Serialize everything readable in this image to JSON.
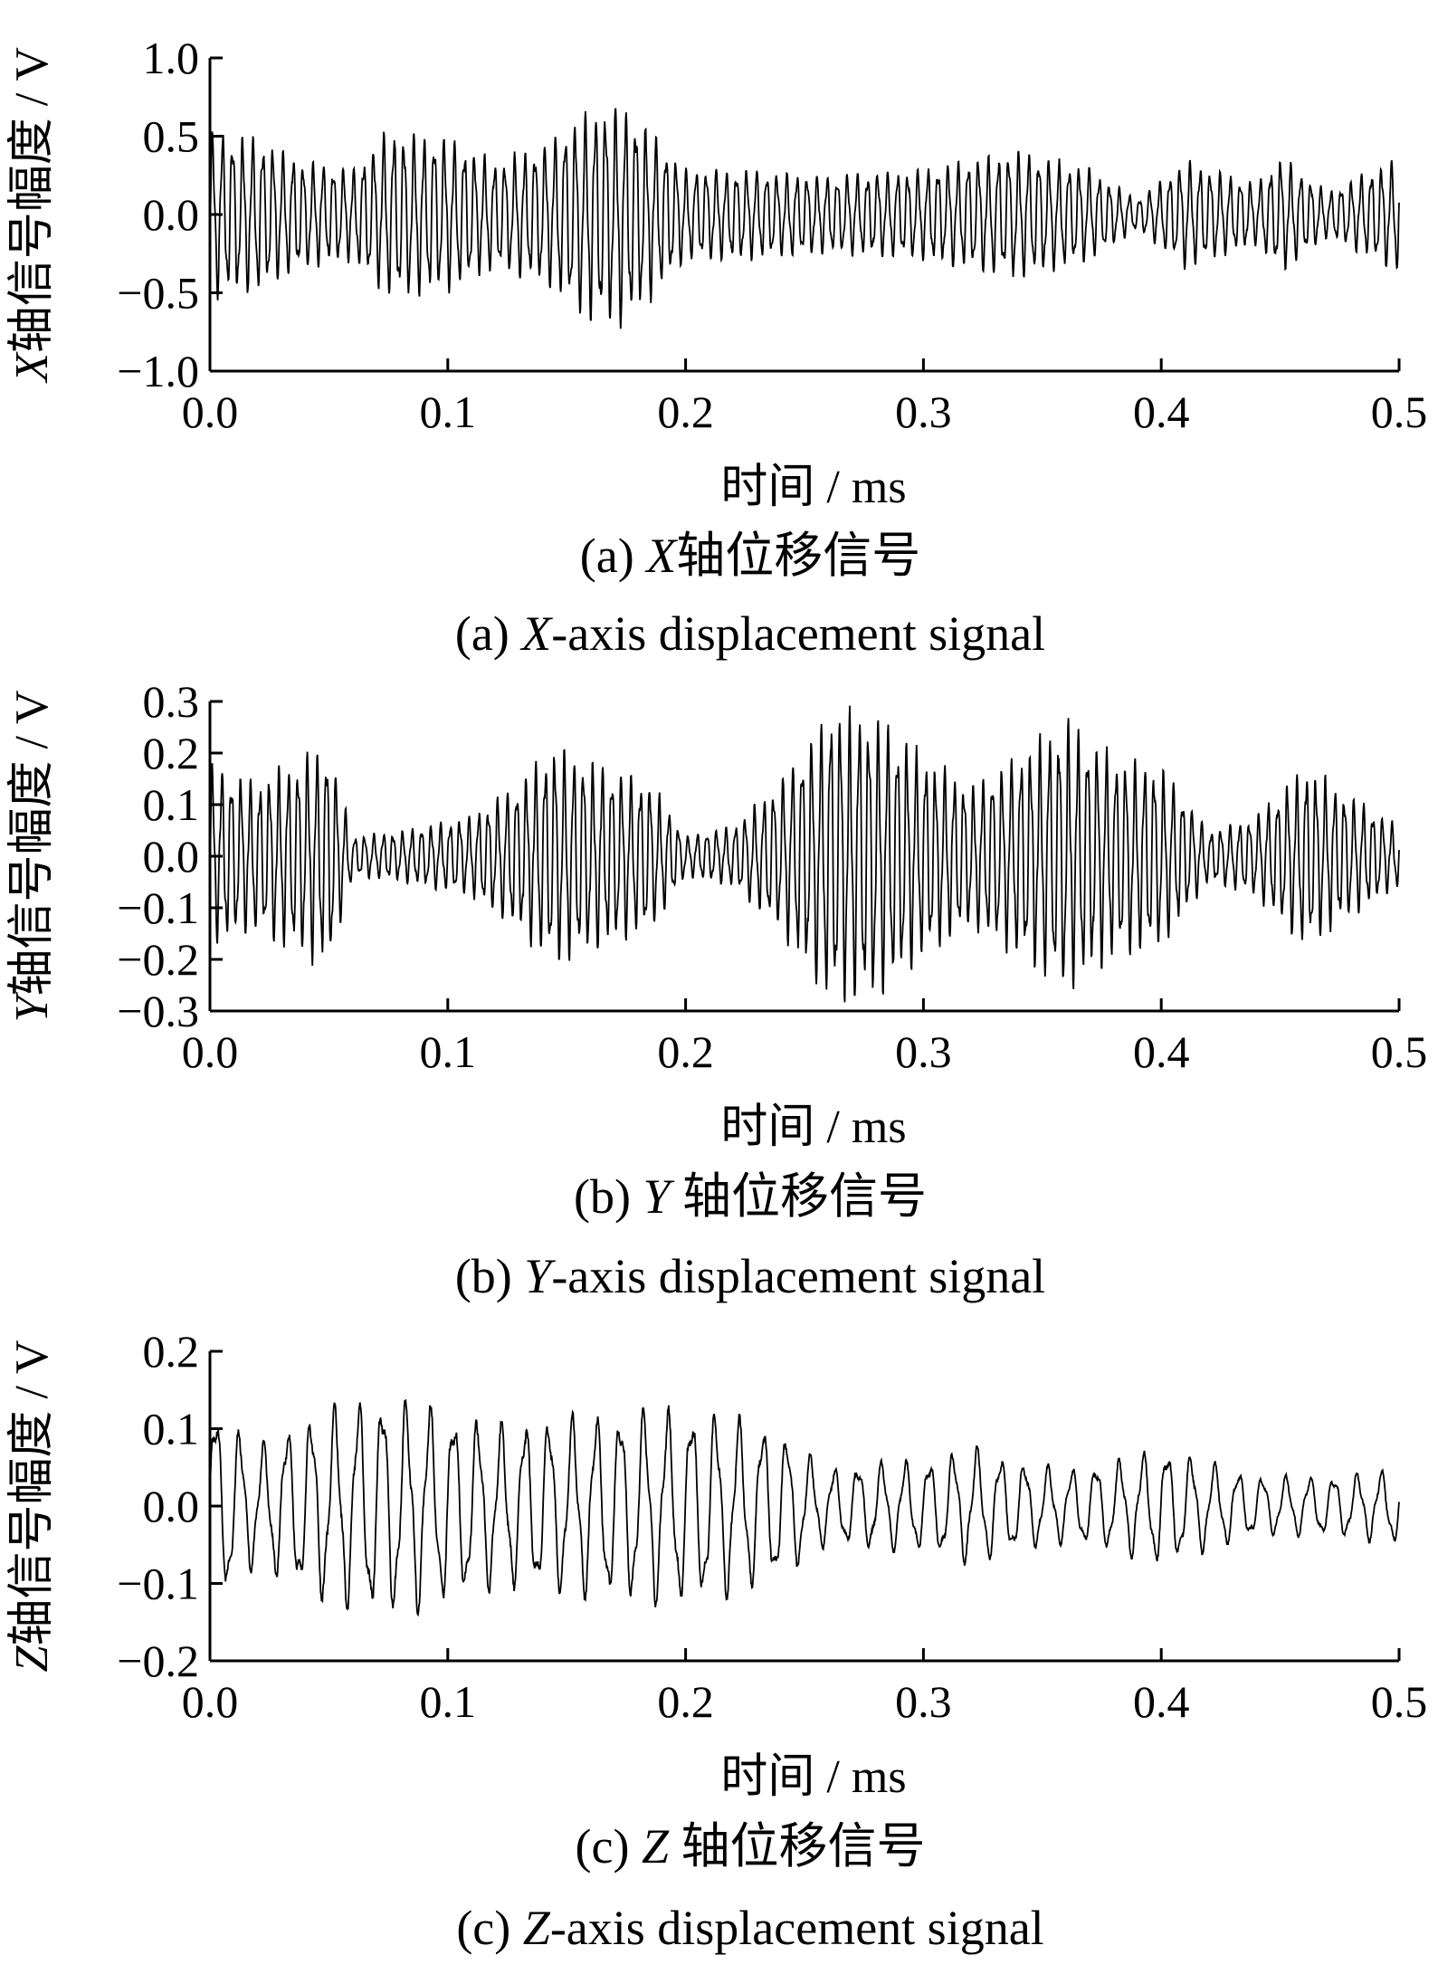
{
  "chart_data": [
    {
      "type": "line",
      "panel": "a",
      "xlabel": "时间 / ms",
      "ylabel_var": "X",
      "ylabel_rest": "轴信号幅度 / V",
      "caption_cn": {
        "prefix": "(a) ",
        "var": "X",
        "suffix": "轴位移信号"
      },
      "caption_en": {
        "prefix": "(a) ",
        "var": "X",
        "suffix": "-axis displacement signal"
      },
      "xlim": [
        0,
        0.5
      ],
      "ylim": [
        -1.0,
        1.0
      ],
      "xticks": [
        "0.0",
        "0.1",
        "0.2",
        "0.3",
        "0.4",
        "0.5"
      ],
      "yticks": [
        "1.0",
        "0.5",
        "0.0",
        "−0.5",
        "−1.0"
      ],
      "grid": false,
      "approx_peak_amplitude": 0.75,
      "approx_cycles": 118,
      "envelope": [
        [
          0,
          0.55
        ],
        [
          0.02,
          0.5
        ],
        [
          0.04,
          0.35
        ],
        [
          0.06,
          0.3
        ],
        [
          0.075,
          0.55
        ],
        [
          0.1,
          0.5
        ],
        [
          0.12,
          0.35
        ],
        [
          0.14,
          0.45
        ],
        [
          0.16,
          0.7
        ],
        [
          0.175,
          0.72
        ],
        [
          0.2,
          0.3
        ],
        [
          0.22,
          0.3
        ],
        [
          0.26,
          0.25
        ],
        [
          0.3,
          0.3
        ],
        [
          0.34,
          0.42
        ],
        [
          0.37,
          0.3
        ],
        [
          0.39,
          0.1
        ],
        [
          0.41,
          0.35
        ],
        [
          0.44,
          0.2
        ],
        [
          0.45,
          0.38
        ],
        [
          0.47,
          0.15
        ],
        [
          0.5,
          0.38
        ]
      ],
      "series": [
        {
          "values": "dense oscillating waveform"
        }
      ]
    },
    {
      "type": "line",
      "panel": "b",
      "xlabel": "时间 / ms",
      "ylabel_var": "Y",
      "ylabel_rest": "轴信号幅度 / V",
      "caption_cn": {
        "prefix": "(b) ",
        "var": "Y",
        "suffix": " 轴位移信号"
      },
      "caption_en": {
        "prefix": "(b) ",
        "var": "Y",
        "suffix": "-axis displacement signal"
      },
      "xlim": [
        0,
        0.5
      ],
      "ylim": [
        -0.3,
        0.3
      ],
      "xticks": [
        "0.0",
        "0.1",
        "0.2",
        "0.3",
        "0.4",
        "0.5"
      ],
      "yticks": [
        "0.3",
        "0.2",
        "0.1",
        "0.0",
        "−0.1",
        "−0.2",
        "−0.3"
      ],
      "grid": false,
      "approx_peak_amplitude": 0.3,
      "approx_cycles": 125,
      "envelope": [
        [
          0,
          0.18
        ],
        [
          0.02,
          0.15
        ],
        [
          0.04,
          0.2
        ],
        [
          0.05,
          0.22
        ],
        [
          0.06,
          0.04
        ],
        [
          0.08,
          0.05
        ],
        [
          0.1,
          0.07
        ],
        [
          0.11,
          0.08
        ],
        [
          0.13,
          0.15
        ],
        [
          0.145,
          0.22
        ],
        [
          0.17,
          0.17
        ],
        [
          0.185,
          0.15
        ],
        [
          0.2,
          0.04
        ],
        [
          0.22,
          0.06
        ],
        [
          0.24,
          0.15
        ],
        [
          0.26,
          0.29
        ],
        [
          0.28,
          0.28
        ],
        [
          0.3,
          0.2
        ],
        [
          0.32,
          0.14
        ],
        [
          0.34,
          0.2
        ],
        [
          0.36,
          0.27
        ],
        [
          0.38,
          0.2
        ],
        [
          0.4,
          0.18
        ],
        [
          0.42,
          0.05
        ],
        [
          0.44,
          0.08
        ],
        [
          0.46,
          0.18
        ],
        [
          0.48,
          0.12
        ],
        [
          0.5,
          0.06
        ]
      ],
      "series": [
        {
          "values": "dense oscillating waveform"
        }
      ]
    },
    {
      "type": "line",
      "panel": "c",
      "xlabel": "时间 / ms",
      "ylabel_var": "Z",
      "ylabel_rest": "轴信号幅度 / V",
      "caption_cn": {
        "prefix": "(c) ",
        "var": "Z",
        "suffix": " 轴位移信号"
      },
      "caption_en": {
        "prefix": "(c) ",
        "var": "Z",
        "suffix": "-axis displacement signal"
      },
      "xlim": [
        0,
        0.5
      ],
      "ylim": [
        -0.2,
        0.2
      ],
      "xticks": [
        "0.0",
        "0.1",
        "0.2",
        "0.3",
        "0.4",
        "0.5"
      ],
      "yticks": [
        "0.2",
        "0.1",
        "0.0",
        "−0.1",
        "−0.2"
      ],
      "grid": false,
      "approx_peak_amplitude": 0.17,
      "approx_cycles": 50,
      "envelope": [
        [
          0,
          0.14
        ],
        [
          0.02,
          0.08
        ],
        [
          0.04,
          0.12
        ],
        [
          0.07,
          0.15
        ],
        [
          0.09,
          0.14
        ],
        [
          0.12,
          0.11
        ],
        [
          0.15,
          0.12
        ],
        [
          0.18,
          0.13
        ],
        [
          0.21,
          0.13
        ],
        [
          0.24,
          0.1
        ],
        [
          0.26,
          0.05
        ],
        [
          0.28,
          0.06
        ],
        [
          0.3,
          0.06
        ],
        [
          0.32,
          0.08
        ],
        [
          0.34,
          0.06
        ],
        [
          0.36,
          0.05
        ],
        [
          0.38,
          0.06
        ],
        [
          0.4,
          0.08
        ],
        [
          0.42,
          0.06
        ],
        [
          0.44,
          0.04
        ],
        [
          0.47,
          0.04
        ],
        [
          0.5,
          0.05
        ]
      ],
      "series": [
        {
          "values": "dense oscillating waveform"
        }
      ]
    }
  ]
}
